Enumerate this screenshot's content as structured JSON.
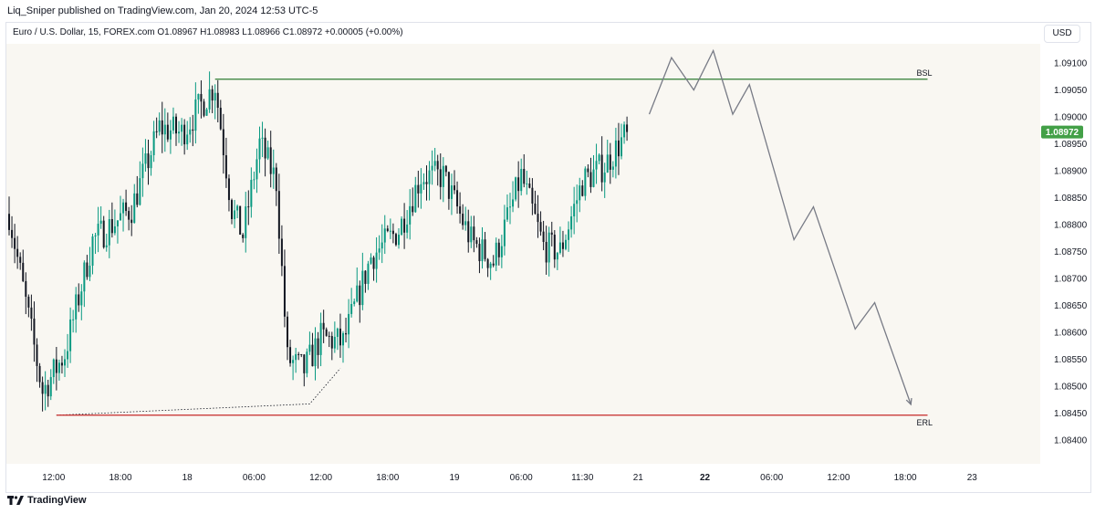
{
  "header": {
    "publisher": "Liq_Sniper published on TradingView.com, Jan 20, 2024 12:53 UTC-5"
  },
  "legend": {
    "symbol": "Euro / U.S. Dollar, 15, FOREX.com",
    "open": "O1.08967",
    "high": "H1.08983",
    "low": "L1.08966",
    "close": "C1.08972",
    "change": "+0.00005 (+0.00%)"
  },
  "currency_button": "USD",
  "footer": {
    "brand": "TradingView"
  },
  "colors": {
    "up": "#089981",
    "down": "#131722",
    "bsl_line": "#2e7d32",
    "erl_line": "#c62828",
    "price_badge": "#43a047",
    "plot_bg": "#f9f7f2"
  },
  "chart_data": {
    "type": "candlestick",
    "symbol": "EUR/USD",
    "interval": "15",
    "last_price": "1.08972",
    "y_axis": {
      "range": [
        1.0837,
        1.0913
      ],
      "ticks": [
        "1.09100",
        "1.09050",
        "1.09000",
        "1.08950",
        "1.08900",
        "1.08850",
        "1.08800",
        "1.08750",
        "1.08700",
        "1.08650",
        "1.08600",
        "1.08550",
        "1.08500",
        "1.08450",
        "1.08400"
      ]
    },
    "x_axis": {
      "ticks": [
        {
          "label": "12:00",
          "bar": 16
        },
        {
          "label": "18:00",
          "bar": 40
        },
        {
          "label": "18",
          "bar": 64
        },
        {
          "label": "06:00",
          "bar": 88
        },
        {
          "label": "12:00",
          "bar": 112
        },
        {
          "label": "18:00",
          "bar": 136
        },
        {
          "label": "19",
          "bar": 160
        },
        {
          "label": "06:00",
          "bar": 184
        },
        {
          "label": "11:30",
          "bar": 206
        },
        {
          "label": "21",
          "bar": 226
        },
        {
          "label": "22",
          "bar": 250
        },
        {
          "label": "06:00",
          "bar": 274
        },
        {
          "label": "12:00",
          "bar": 298
        },
        {
          "label": "18:00",
          "bar": 322
        },
        {
          "label": "23",
          "bar": 346
        }
      ]
    },
    "levels": [
      {
        "label": "BSL",
        "price": 1.0907,
        "from_bar": 74,
        "to_bar": 330
      },
      {
        "label": "ERL",
        "price": 1.08446,
        "from_bar": 17,
        "to_bar": 330
      }
    ],
    "projection": [
      [
        230,
        1.09005
      ],
      [
        238,
        1.0911
      ],
      [
        246,
        1.0905
      ],
      [
        253,
        1.09123
      ],
      [
        260,
        1.09005
      ],
      [
        266,
        1.0906
      ],
      [
        282,
        1.08772
      ],
      [
        289,
        1.08833
      ],
      [
        304,
        1.08606
      ],
      [
        311,
        1.08655
      ],
      [
        324,
        1.08466
      ]
    ],
    "trendline_dotted": [
      [
        17,
        1.08446
      ],
      [
        108,
        1.08467
      ],
      [
        119,
        1.08533
      ]
    ],
    "anchors": [
      {
        "bar": 0,
        "price": 1.0882
      },
      {
        "bar": 12,
        "price": 1.0849
      },
      {
        "bar": 20,
        "price": 1.0856
      },
      {
        "bar": 30,
        "price": 1.0877
      },
      {
        "bar": 44,
        "price": 1.0883
      },
      {
        "bar": 54,
        "price": 1.0898
      },
      {
        "bar": 62,
        "price": 1.0897
      },
      {
        "bar": 74,
        "price": 1.0906
      },
      {
        "bar": 80,
        "price": 1.0883
      },
      {
        "bar": 84,
        "price": 1.0878
      },
      {
        "bar": 90,
        "price": 1.0895
      },
      {
        "bar": 96,
        "price": 1.0888
      },
      {
        "bar": 100,
        "price": 1.0855
      },
      {
        "bar": 106,
        "price": 1.0853
      },
      {
        "bar": 112,
        "price": 1.0859
      },
      {
        "bar": 120,
        "price": 1.0858
      },
      {
        "bar": 130,
        "price": 1.0874
      },
      {
        "bar": 140,
        "price": 1.0879
      },
      {
        "bar": 148,
        "price": 1.0889
      },
      {
        "bar": 156,
        "price": 1.0889
      },
      {
        "bar": 166,
        "price": 1.0877
      },
      {
        "bar": 174,
        "price": 1.0873
      },
      {
        "bar": 184,
        "price": 1.0889
      },
      {
        "bar": 192,
        "price": 1.0876
      },
      {
        "bar": 198,
        "price": 1.0875
      },
      {
        "bar": 206,
        "price": 1.0888
      },
      {
        "bar": 214,
        "price": 1.0891
      },
      {
        "bar": 222,
        "price": 1.0897
      }
    ]
  }
}
